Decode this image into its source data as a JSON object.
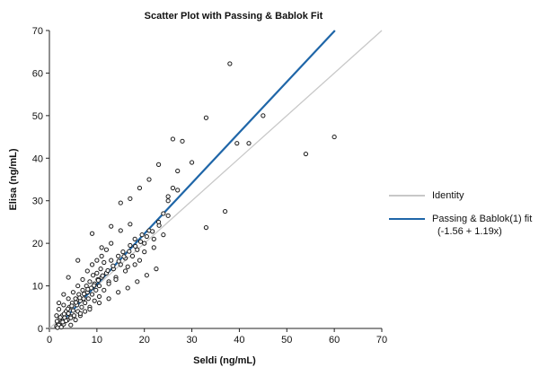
{
  "chart_data": {
    "type": "scatter",
    "title": "Scatter Plot with Passing & Bablok Fit",
    "xlabel": "Seldi (ng/mL)",
    "ylabel": "Elisa (ng/mL)",
    "xlim": [
      0,
      70
    ],
    "ylim": [
      0,
      70
    ],
    "xticks": [
      0,
      10,
      20,
      30,
      40,
      50,
      60,
      70
    ],
    "yticks": [
      0,
      10,
      20,
      30,
      40,
      50,
      60,
      70
    ],
    "grid": false,
    "legend_position": "right",
    "series": [
      {
        "kind": "points",
        "marker": "open-circle",
        "color": "#1a1a1a",
        "points": [
          [
            1.5,
            0.5
          ],
          [
            1.8,
            1.2
          ],
          [
            2,
            0.8
          ],
          [
            2.2,
            2.1
          ],
          [
            2.5,
            1.5
          ],
          [
            2.7,
            3
          ],
          [
            3,
            1
          ],
          [
            3.2,
            2.5
          ],
          [
            3.5,
            4
          ],
          [
            3.8,
            2
          ],
          [
            4,
            3.5
          ],
          [
            4.2,
            5
          ],
          [
            4.5,
            2.8
          ],
          [
            4.8,
            6
          ],
          [
            5,
            4.2
          ],
          [
            5.2,
            3
          ],
          [
            5.5,
            7
          ],
          [
            5.8,
            5.5
          ],
          [
            6,
            4
          ],
          [
            6.2,
            8
          ],
          [
            6.5,
            6.5
          ],
          [
            6.8,
            5
          ],
          [
            7,
            9
          ],
          [
            7.2,
            7
          ],
          [
            7.5,
            6
          ],
          [
            7.8,
            10
          ],
          [
            8,
            8.5
          ],
          [
            8.2,
            7
          ],
          [
            8.5,
            11
          ],
          [
            8.8,
            9.5
          ],
          [
            9,
            8
          ],
          [
            9.2,
            12.5
          ],
          [
            9.5,
            10.5
          ],
          [
            9.8,
            9
          ],
          [
            10,
            13
          ],
          [
            10.2,
            11.5
          ],
          [
            10.5,
            10
          ],
          [
            10.8,
            14
          ],
          [
            11,
            12
          ],
          [
            11.5,
            15.5
          ],
          [
            12,
            13
          ],
          [
            12.5,
            11
          ],
          [
            13,
            16
          ],
          [
            13.5,
            14
          ],
          [
            14,
            12
          ],
          [
            14.5,
            17
          ],
          [
            15,
            15
          ],
          [
            15.5,
            18
          ],
          [
            16,
            16.5
          ],
          [
            16.5,
            14.5
          ],
          [
            17,
            19.5
          ],
          [
            17.5,
            17
          ],
          [
            18,
            21
          ],
          [
            18.5,
            18.5
          ],
          [
            19,
            16
          ],
          [
            19.5,
            22
          ],
          [
            20,
            20
          ],
          [
            21,
            23
          ],
          [
            22,
            19
          ],
          [
            23,
            25
          ],
          [
            24,
            27
          ],
          [
            25,
            30
          ],
          [
            26,
            33
          ],
          [
            26,
            44.5
          ],
          [
            27,
            37
          ],
          [
            28,
            44
          ],
          [
            30,
            39
          ],
          [
            33,
            49.5
          ],
          [
            38,
            62.2
          ],
          [
            39.5,
            43.5
          ],
          [
            42,
            43.5
          ],
          [
            45,
            50
          ],
          [
            37,
            27.5
          ],
          [
            33,
            23.7
          ],
          [
            54,
            41
          ],
          [
            60,
            45
          ],
          [
            1.5,
            3
          ],
          [
            2,
            4.5
          ],
          [
            2.5,
            0.3
          ],
          [
            3,
            5.5
          ],
          [
            3.5,
            1.8
          ],
          [
            4,
            7
          ],
          [
            4.5,
            0.8
          ],
          [
            5,
            8.5
          ],
          [
            5.5,
            2
          ],
          [
            6,
            10
          ],
          [
            6.5,
            3
          ],
          [
            7,
            11.5
          ],
          [
            7.5,
            4
          ],
          [
            8,
            13.5
          ],
          [
            8.5,
            5
          ],
          [
            9,
            15
          ],
          [
            9.5,
            6.5
          ],
          [
            10,
            16
          ],
          [
            10.5,
            7.5
          ],
          [
            11,
            17
          ],
          [
            11.5,
            9
          ],
          [
            12,
            18.5
          ],
          [
            12.5,
            10.5
          ],
          [
            13,
            20
          ],
          [
            14,
            11.5
          ],
          [
            15,
            23
          ],
          [
            16,
            13.5
          ],
          [
            17,
            24.5
          ],
          [
            18,
            15
          ],
          [
            20,
            18
          ],
          [
            22,
            21
          ],
          [
            24,
            22
          ],
          [
            9,
            22.3
          ],
          [
            6,
            16
          ],
          [
            4,
            12
          ],
          [
            3,
            8
          ],
          [
            2,
            6
          ],
          [
            1.6,
            1.7
          ],
          [
            2.3,
            2.6
          ],
          [
            3.1,
            3.4
          ],
          [
            3.9,
            4.6
          ],
          [
            4.7,
            5.3
          ],
          [
            5.6,
            6.1
          ],
          [
            6.4,
            7.2
          ],
          [
            7.3,
            8.1
          ],
          [
            8.1,
            9.2
          ],
          [
            9.4,
            10.1
          ],
          [
            10.3,
            11.3
          ],
          [
            11.2,
            12.4
          ],
          [
            12.3,
            13.6
          ],
          [
            13.4,
            14.7
          ],
          [
            14.6,
            15.8
          ],
          [
            15.7,
            16.9
          ],
          [
            16.8,
            18.1
          ],
          [
            18.1,
            19.3
          ],
          [
            19.2,
            20.4
          ],
          [
            20.5,
            21.6
          ],
          [
            21.7,
            22.8
          ],
          [
            23.1,
            24.2
          ],
          [
            25,
            26.5
          ],
          [
            22.5,
            14
          ],
          [
            20.5,
            12.5
          ],
          [
            18.5,
            11
          ],
          [
            16.5,
            9.5
          ],
          [
            14.5,
            8.5
          ],
          [
            12.5,
            7
          ],
          [
            10.5,
            6
          ],
          [
            8.5,
            4.5
          ],
          [
            6.5,
            3.5
          ],
          [
            4.5,
            2.5
          ],
          [
            2.8,
            1.5
          ],
          [
            1.7,
            0.2
          ],
          [
            11,
            19
          ],
          [
            13,
            24
          ],
          [
            15,
            29.5
          ],
          [
            17,
            30.5
          ],
          [
            19,
            33
          ],
          [
            21,
            35
          ],
          [
            23,
            38.5
          ],
          [
            25,
            31
          ],
          [
            27,
            32.5
          ]
        ]
      },
      {
        "name": "Identity",
        "kind": "line",
        "color": "#c8c8c8",
        "intercept": 0,
        "slope": 1
      },
      {
        "name": "Passing & Bablok(1) fit",
        "subtitle": "(-1.56 + 1.19x)",
        "kind": "line",
        "color": "#1f66a8",
        "intercept": -1.56,
        "slope": 1.19
      }
    ]
  }
}
